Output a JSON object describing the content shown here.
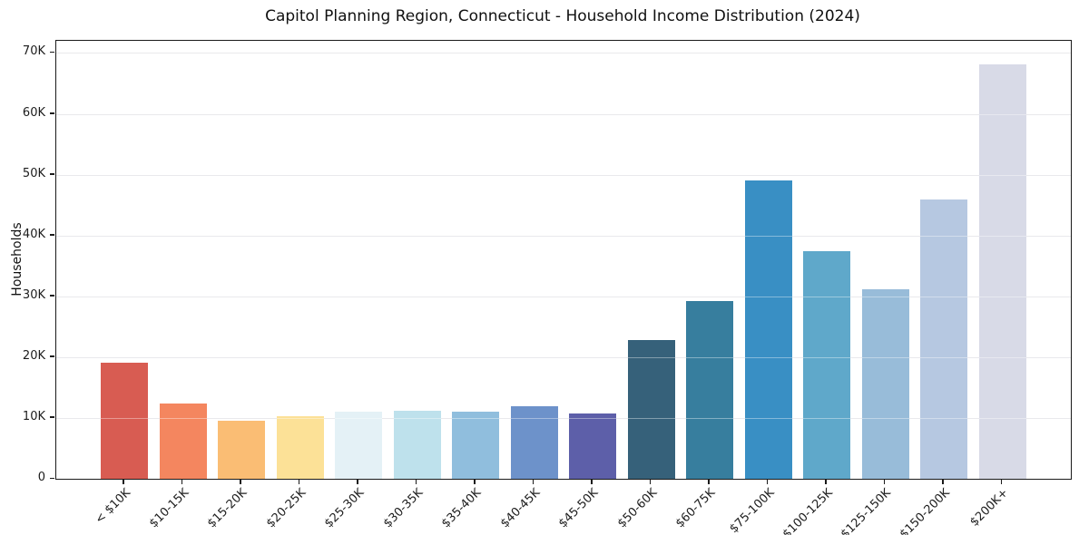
{
  "chart_data": {
    "type": "bar",
    "title": "Capitol Planning Region, Connecticut - Household Income Distribution (2024)",
    "xlabel": "",
    "ylabel": "Households",
    "categories": [
      "< $10K",
      "$10-15K",
      "$15-20K",
      "$20-25K",
      "$25-30K",
      "$30-35K",
      "$35-40K",
      "$40-45K",
      "$45-50K",
      "$50-60K",
      "$60-75K",
      "$75-100K",
      "$100-125K",
      "$125-150K",
      "$150-200K",
      "$200K+"
    ],
    "values": [
      19100,
      12400,
      9500,
      10300,
      11000,
      11200,
      11100,
      12000,
      10700,
      22800,
      29200,
      49100,
      37400,
      31200,
      45900,
      68200
    ],
    "bar_colors": [
      "#d85c52",
      "#f4865f",
      "#fabd74",
      "#fce197",
      "#e4f1f6",
      "#bee1ec",
      "#90bedd",
      "#6d92ca",
      "#5d5fa9",
      "#36617a",
      "#377e9e",
      "#398fc4",
      "#5fa8ca",
      "#98bcd9",
      "#b6c8e1",
      "#d8dae7"
    ],
    "ylim": [
      0,
      72000
    ],
    "yticks": [
      {
        "value": 0,
        "label": "0"
      },
      {
        "value": 10000,
        "label": "10K"
      },
      {
        "value": 20000,
        "label": "20K"
      },
      {
        "value": 30000,
        "label": "30K"
      },
      {
        "value": 40000,
        "label": "40K"
      },
      {
        "value": 50000,
        "label": "50K"
      },
      {
        "value": 60000,
        "label": "60K"
      },
      {
        "value": 70000,
        "label": "70K"
      }
    ],
    "grid": true,
    "legend": false,
    "colors": {
      "spine": "#1a1a1a",
      "grid": "#e8e8ec",
      "background": "#ffffff",
      "text": "#1c1c1c"
    }
  }
}
